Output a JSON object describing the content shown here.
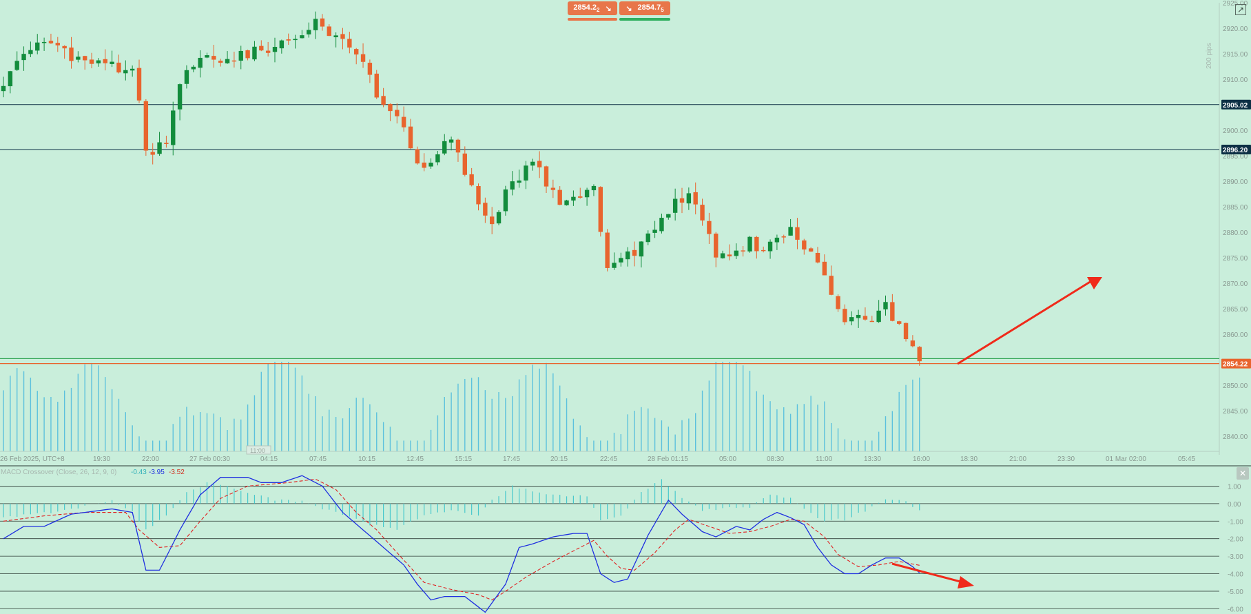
{
  "colors": {
    "background": "#c9eedb",
    "bull": "#128c3c",
    "bear": "#e8642e",
    "volume": "#5cc1dd",
    "macd_line": "#1f2fe0",
    "signal_line": "#e02020",
    "histogram": "#48c8cc",
    "level_line": "#0d3045",
    "support_line": "#1a9a40",
    "price_line": "#e8642e",
    "annotation_arrow": "#f02a1a",
    "axis_text": "#8a9a92"
  },
  "header": {
    "sell_price": "2854.2",
    "sell_price_sub": "2",
    "buy_price": "2854.7",
    "buy_price_sub": "5",
    "sell_icon": "arrow-down-right-icon",
    "buy_icon": "arrow-down-right-icon"
  },
  "price_axis": {
    "pips_label": "200 pips",
    "labels": [
      "2925.00",
      "2920.00",
      "2915.00",
      "2910.00",
      "2900.00",
      "2895.00",
      "2890.00",
      "2885.00",
      "2880.00",
      "2875.00",
      "2870.00",
      "2865.00",
      "2860.00",
      "2850.00",
      "2845.00",
      "2840.00"
    ],
    "level_tags": [
      "2905.02",
      "2896.20",
      "2854.22"
    ]
  },
  "time_axis": {
    "labels": [
      "26 Feb 2025, UTC+8",
      "19:30",
      "22:00",
      "27 Feb 00:30",
      "04:15",
      "07:45",
      "10:15",
      "12:45",
      "15:15",
      "17:45",
      "20:15",
      "22:45",
      "28 Feb 01:15",
      "05:00",
      "08:30",
      "11:00",
      "13:30",
      "16:00",
      "18:30",
      "21:00",
      "23:30",
      "01 Mar 02:00",
      "05:45"
    ],
    "cursor_label": "11:00"
  },
  "macd_panel": {
    "title": "MACD Crossover (Close, 26, 12, 9, 0)",
    "histogram_value": "-0.43",
    "macd_value": "-3.95",
    "signal_value": "-3.52",
    "axis_labels": [
      "1.00",
      "0.00",
      "-1.00",
      "-2.00",
      "-3.00",
      "-4.00",
      "-5.00",
      "-6.00"
    ],
    "close_icon": "close-icon"
  },
  "chart_data": {
    "type": "candlestick",
    "symbol_quotes": {
      "bid": 2854.22,
      "ask": 2854.75
    },
    "price_range": [
      2837,
      2925
    ],
    "horizontal_levels": [
      2905.02,
      2896.2,
      2855.2,
      2854.22
    ],
    "last_price": 2854.22,
    "macd_range": [
      -6.3,
      2.0
    ],
    "macd_params": {
      "source": "Close",
      "slow": 26,
      "fast": 12,
      "signal": 9
    },
    "last_values": {
      "histogram": -0.43,
      "macd": -3.95,
      "signal": -3.52
    },
    "price_trend_points": [
      [
        0,
        2908
      ],
      [
        2,
        2913
      ],
      [
        5,
        2918
      ],
      [
        9,
        2915
      ],
      [
        14,
        2913
      ],
      [
        19,
        2912
      ],
      [
        20,
        2905
      ],
      [
        21,
        2895
      ],
      [
        24,
        2898
      ],
      [
        26,
        2910
      ],
      [
        29,
        2914
      ],
      [
        33,
        2914
      ],
      [
        38,
        2916
      ],
      [
        42,
        2917
      ],
      [
        46,
        2921
      ],
      [
        50,
        2917
      ],
      [
        53,
        2913
      ],
      [
        55,
        2907
      ],
      [
        58,
        2903
      ],
      [
        60,
        2897
      ],
      [
        62,
        2892
      ],
      [
        64,
        2896
      ],
      [
        66,
        2898
      ],
      [
        68,
        2892
      ],
      [
        70,
        2886
      ],
      [
        72,
        2882
      ],
      [
        74,
        2888
      ],
      [
        76,
        2891
      ],
      [
        78,
        2894
      ],
      [
        80,
        2890
      ],
      [
        82,
        2885
      ],
      [
        85,
        2887
      ],
      [
        87,
        2889
      ],
      [
        88,
        2881
      ],
      [
        89,
        2872
      ],
      [
        91,
        2876
      ],
      [
        93,
        2876
      ],
      [
        96,
        2880
      ],
      [
        99,
        2886
      ],
      [
        101,
        2887
      ],
      [
        103,
        2882
      ],
      [
        105,
        2876
      ],
      [
        108,
        2876
      ],
      [
        110,
        2878
      ],
      [
        112,
        2876
      ],
      [
        114,
        2879
      ],
      [
        116,
        2881
      ],
      [
        118,
        2876
      ],
      [
        120,
        2875
      ],
      [
        122,
        2868
      ],
      [
        124,
        2862
      ],
      [
        126,
        2864
      ],
      [
        128,
        2863
      ],
      [
        130,
        2866
      ],
      [
        132,
        2861
      ],
      [
        134,
        2858
      ],
      [
        135,
        2854.22
      ]
    ],
    "macd_points": [
      [
        0,
        -2
      ],
      [
        3,
        -1.3
      ],
      [
        6,
        -1.3
      ],
      [
        10,
        -0.6
      ],
      [
        16,
        -0.3
      ],
      [
        19,
        -0.5
      ],
      [
        21,
        -3.8
      ],
      [
        23,
        -3.8
      ],
      [
        26,
        -1.5
      ],
      [
        29,
        0.5
      ],
      [
        32,
        1.5
      ],
      [
        36,
        1.5
      ],
      [
        38,
        1.2
      ],
      [
        41,
        1.2
      ],
      [
        44,
        1.6
      ],
      [
        47,
        1.0
      ],
      [
        50,
        -0.5
      ],
      [
        53,
        -1.5
      ],
      [
        56,
        -2.5
      ],
      [
        59,
        -3.5
      ],
      [
        61,
        -4.6
      ],
      [
        63,
        -5.5
      ],
      [
        65,
        -5.3
      ],
      [
        68,
        -5.3
      ],
      [
        71,
        -6.2
      ],
      [
        74,
        -4.6
      ],
      [
        76,
        -2.5
      ],
      [
        78,
        -2.3
      ],
      [
        81,
        -1.9
      ],
      [
        84,
        -1.7
      ],
      [
        86,
        -1.7
      ],
      [
        88,
        -4.0
      ],
      [
        90,
        -4.5
      ],
      [
        92,
        -4.3
      ],
      [
        95,
        -1.8
      ],
      [
        98,
        0.2
      ],
      [
        100,
        -0.6
      ],
      [
        103,
        -1.6
      ],
      [
        105,
        -1.9
      ],
      [
        108,
        -1.3
      ],
      [
        110,
        -1.5
      ],
      [
        112,
        -0.9
      ],
      [
        114,
        -0.5
      ],
      [
        116,
        -0.8
      ],
      [
        118,
        -1.2
      ],
      [
        120,
        -2.5
      ],
      [
        122,
        -3.5
      ],
      [
        124,
        -4.0
      ],
      [
        126,
        -4.0
      ],
      [
        128,
        -3.5
      ],
      [
        130,
        -3.1
      ],
      [
        132,
        -3.1
      ],
      [
        134,
        -3.6
      ],
      [
        135,
        -3.95
      ]
    ],
    "signal_points": [
      [
        0,
        -1.0
      ],
      [
        6,
        -0.7
      ],
      [
        12,
        -0.5
      ],
      [
        18,
        -0.5
      ],
      [
        20,
        -1.5
      ],
      [
        23,
        -2.5
      ],
      [
        26,
        -2.4
      ],
      [
        29,
        -1.0
      ],
      [
        32,
        0.3
      ],
      [
        36,
        1.0
      ],
      [
        42,
        1.2
      ],
      [
        46,
        1.4
      ],
      [
        49,
        0.8
      ],
      [
        52,
        -0.5
      ],
      [
        55,
        -1.5
      ],
      [
        58,
        -2.8
      ],
      [
        62,
        -4.5
      ],
      [
        66,
        -4.9
      ],
      [
        70,
        -5.2
      ],
      [
        72,
        -5.5
      ],
      [
        74,
        -5.0
      ],
      [
        77,
        -4.2
      ],
      [
        81,
        -3.3
      ],
      [
        85,
        -2.5
      ],
      [
        87,
        -2.1
      ],
      [
        89,
        -3.0
      ],
      [
        91,
        -3.7
      ],
      [
        93,
        -3.8
      ],
      [
        96,
        -2.8
      ],
      [
        99,
        -1.5
      ],
      [
        101,
        -0.9
      ],
      [
        104,
        -1.3
      ],
      [
        107,
        -1.7
      ],
      [
        110,
        -1.6
      ],
      [
        113,
        -1.3
      ],
      [
        116,
        -0.9
      ],
      [
        118,
        -1.0
      ],
      [
        121,
        -1.9
      ],
      [
        123,
        -2.9
      ],
      [
        126,
        -3.6
      ],
      [
        129,
        -3.5
      ],
      [
        132,
        -3.3
      ],
      [
        135,
        -3.52
      ]
    ],
    "histogram_points": [
      [
        0,
        -0.8
      ],
      [
        5,
        -0.6
      ],
      [
        10,
        -0.3
      ],
      [
        16,
        0.2
      ],
      [
        19,
        -0.5
      ],
      [
        21,
        -1.5
      ],
      [
        24,
        -0.7
      ],
      [
        27,
        0.6
      ],
      [
        30,
        1.2
      ],
      [
        35,
        0.8
      ],
      [
        40,
        0.2
      ],
      [
        44,
        0.1
      ],
      [
        47,
        -0.3
      ],
      [
        50,
        -0.6
      ],
      [
        54,
        -1.2
      ],
      [
        58,
        -1.5
      ],
      [
        62,
        -0.6
      ],
      [
        66,
        -0.4
      ],
      [
        70,
        -0.7
      ],
      [
        72,
        0.2
      ],
      [
        75,
        1.0
      ],
      [
        78,
        0.7
      ],
      [
        82,
        0.5
      ],
      [
        86,
        0.4
      ],
      [
        88,
        -1.0
      ],
      [
        91,
        -0.7
      ],
      [
        94,
        0.6
      ],
      [
        97,
        1.4
      ],
      [
        100,
        0.3
      ],
      [
        103,
        -0.4
      ],
      [
        106,
        -0.3
      ],
      [
        110,
        -0.2
      ],
      [
        113,
        0.5
      ],
      [
        116,
        0.3
      ],
      [
        118,
        -0.3
      ],
      [
        121,
        -1.0
      ],
      [
        124,
        -0.9
      ],
      [
        127,
        -0.4
      ],
      [
        130,
        0.2
      ],
      [
        133,
        0.1
      ],
      [
        135,
        -0.43
      ]
    ],
    "annotations": [
      {
        "type": "arrow",
        "panel": "price",
        "direction": "up-right"
      },
      {
        "type": "arrow",
        "panel": "macd",
        "direction": "down-right"
      }
    ]
  }
}
